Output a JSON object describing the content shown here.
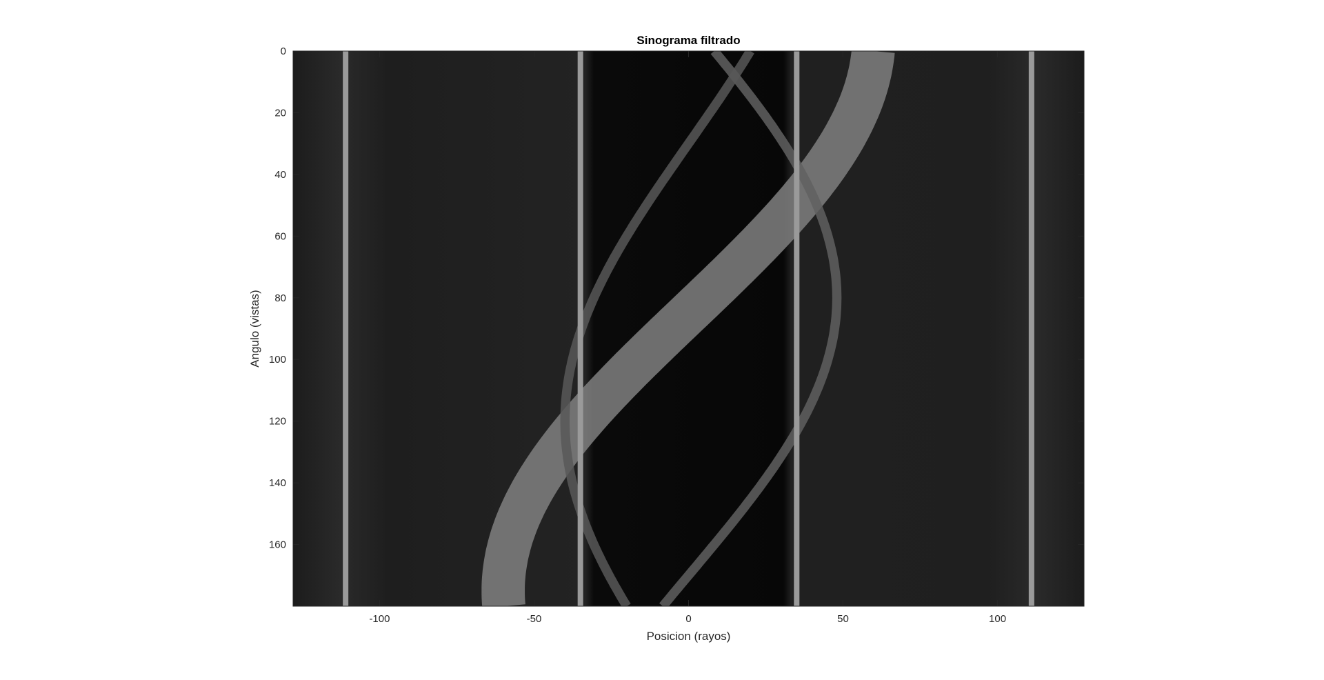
{
  "chart_data": {
    "type": "heatmap",
    "title": "Sinograma filtrado",
    "xlabel": "Posicion (rayos)",
    "ylabel": "Angulo (vistas)",
    "xlim": [
      -128,
      128
    ],
    "ylim": [
      0,
      180
    ],
    "y_direction": "reverse",
    "colormap": "gray",
    "grid": false,
    "x_ticks": [
      -100,
      -50,
      0,
      50,
      100
    ],
    "y_ticks": [
      0,
      20,
      40,
      60,
      80,
      100,
      120,
      140,
      160
    ],
    "x_tick_labels": [
      "-100",
      "-50",
      "0",
      "50",
      "100"
    ],
    "y_tick_labels": [
      "0",
      "20",
      "40",
      "60",
      "80",
      "100",
      "120",
      "140",
      "160"
    ],
    "vertical_bright_lines_x": [
      -111,
      -35,
      35,
      111
    ],
    "sinusoid_tracks": [
      {
        "amplitude": 60,
        "phase_deg": 95,
        "width": 14,
        "level": 0.55
      },
      {
        "amplitude": 48,
        "phase_deg": 10,
        "width": 3,
        "level": 0.35
      },
      {
        "amplitude": 40,
        "phase_deg": 150,
        "width": 3,
        "level": 0.3
      }
    ]
  }
}
